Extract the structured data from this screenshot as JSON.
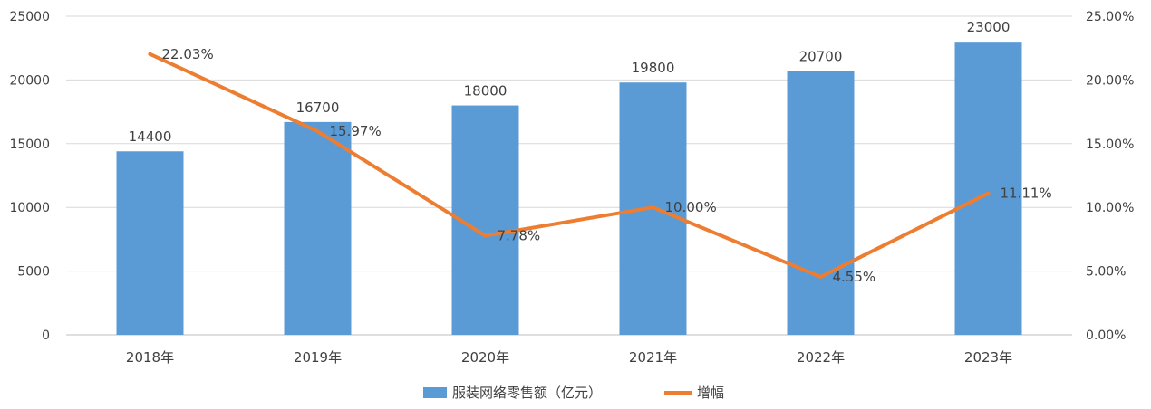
{
  "chart_data": {
    "type": "bar",
    "categories": [
      "2018年",
      "2019年",
      "2020年",
      "2021年",
      "2022年",
      "2023年"
    ],
    "series": [
      {
        "name": "服装网络零售额（亿元）",
        "type": "bar",
        "axis": "left",
        "values": [
          14400,
          16700,
          18000,
          19800,
          20700,
          23000
        ],
        "labels": [
          "14400",
          "16700",
          "18000",
          "19800",
          "20700",
          "23000"
        ],
        "color": "#5B9BD5"
      },
      {
        "name": "增幅",
        "type": "line",
        "axis": "right",
        "values": [
          22.03,
          15.97,
          7.78,
          10.0,
          4.55,
          11.11
        ],
        "labels": [
          "22.03%",
          "15.97%",
          "7.78%",
          "10.00%",
          "4.55%",
          "11.11%"
        ],
        "color": "#ED7D31"
      }
    ],
    "y_left": {
      "ylim": [
        0,
        25000
      ],
      "ticks": [
        "0",
        "5000",
        "10000",
        "15000",
        "20000",
        "25000"
      ]
    },
    "y_right": {
      "ylim": [
        0,
        25
      ],
      "ticks": [
        "0.00%",
        "5.00%",
        "10.00%",
        "15.00%",
        "20.00%",
        "25.00%"
      ]
    },
    "grid": true,
    "legend": "bottom-center",
    "gridline_color": "#D9D9D9"
  }
}
